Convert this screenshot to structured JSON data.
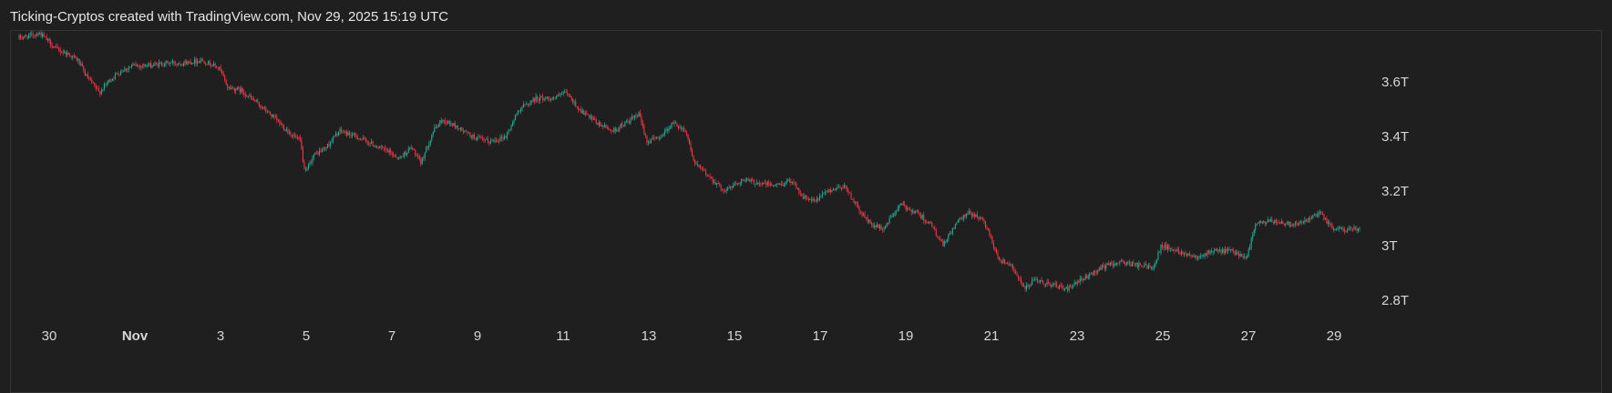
{
  "header": {
    "title": "Ticking-Cryptos created with TradingView.com, Nov 29, 2025 15:19 UTC"
  },
  "colors": {
    "background": "#1f1f1f",
    "pane_border": "#353535",
    "up": "#22ab94",
    "down": "#f23645",
    "text": "#d6d6d6"
  },
  "chart_data": {
    "type": "candlestick",
    "title": "",
    "unit": "T",
    "price_axis": {
      "position": "right",
      "range": [
        2.74,
        3.79
      ],
      "ticks": [
        {
          "value": 3.6,
          "label": "3.6T"
        },
        {
          "value": 3.4,
          "label": "3.4T"
        },
        {
          "value": 3.2,
          "label": "3.2T"
        },
        {
          "value": 3.0,
          "label": "3T"
        },
        {
          "value": 2.8,
          "label": "2.8T"
        }
      ]
    },
    "time_axis": {
      "range_days": [
        29.3,
        60.6
      ],
      "ticks": [
        {
          "day": 30,
          "label": "30",
          "bold": false
        },
        {
          "day": 32,
          "label": "Nov",
          "bold": true
        },
        {
          "day": 34,
          "label": "3",
          "bold": false
        },
        {
          "day": 36,
          "label": "5",
          "bold": false
        },
        {
          "day": 38,
          "label": "7",
          "bold": false
        },
        {
          "day": 40,
          "label": "9",
          "bold": false
        },
        {
          "day": 42,
          "label": "11",
          "bold": false
        },
        {
          "day": 44,
          "label": "13",
          "bold": false
        },
        {
          "day": 46,
          "label": "15",
          "bold": false
        },
        {
          "day": 48,
          "label": "17",
          "bold": false
        },
        {
          "day": 50,
          "label": "19",
          "bold": false
        },
        {
          "day": 52,
          "label": "21",
          "bold": false
        },
        {
          "day": 54,
          "label": "23",
          "bold": false
        },
        {
          "day": 56,
          "label": "25",
          "bold": false
        },
        {
          "day": 58,
          "label": "27",
          "bold": false
        },
        {
          "day": 60,
          "label": "29",
          "bold": false
        }
      ]
    },
    "price_path": [
      [
        29.3,
        3.76
      ],
      [
        29.6,
        3.77
      ],
      [
        29.8,
        3.78
      ],
      [
        30.0,
        3.75
      ],
      [
        30.2,
        3.72
      ],
      [
        30.5,
        3.7
      ],
      [
        30.7,
        3.68
      ],
      [
        30.9,
        3.62
      ],
      [
        31.2,
        3.56
      ],
      [
        31.4,
        3.6
      ],
      [
        31.7,
        3.64
      ],
      [
        32.0,
        3.66
      ],
      [
        32.4,
        3.66
      ],
      [
        32.8,
        3.67
      ],
      [
        33.2,
        3.67
      ],
      [
        33.6,
        3.68
      ],
      [
        34.0,
        3.65
      ],
      [
        34.2,
        3.58
      ],
      [
        34.5,
        3.57
      ],
      [
        34.9,
        3.52
      ],
      [
        35.2,
        3.48
      ],
      [
        35.6,
        3.42
      ],
      [
        35.9,
        3.38
      ],
      [
        36.0,
        3.26
      ],
      [
        36.2,
        3.33
      ],
      [
        36.5,
        3.36
      ],
      [
        36.8,
        3.42
      ],
      [
        37.2,
        3.4
      ],
      [
        37.6,
        3.37
      ],
      [
        38.0,
        3.34
      ],
      [
        38.2,
        3.32
      ],
      [
        38.5,
        3.36
      ],
      [
        38.7,
        3.3
      ],
      [
        39.0,
        3.42
      ],
      [
        39.2,
        3.46
      ],
      [
        39.5,
        3.44
      ],
      [
        39.9,
        3.4
      ],
      [
        40.3,
        3.38
      ],
      [
        40.7,
        3.4
      ],
      [
        41.0,
        3.5
      ],
      [
        41.4,
        3.54
      ],
      [
        41.8,
        3.54
      ],
      [
        42.1,
        3.56
      ],
      [
        42.4,
        3.5
      ],
      [
        42.8,
        3.45
      ],
      [
        43.2,
        3.42
      ],
      [
        43.6,
        3.46
      ],
      [
        43.8,
        3.48
      ],
      [
        44.0,
        3.38
      ],
      [
        44.3,
        3.4
      ],
      [
        44.6,
        3.45
      ],
      [
        44.9,
        3.42
      ],
      [
        45.1,
        3.3
      ],
      [
        45.4,
        3.26
      ],
      [
        45.8,
        3.2
      ],
      [
        46.2,
        3.24
      ],
      [
        46.6,
        3.23
      ],
      [
        47.0,
        3.22
      ],
      [
        47.4,
        3.24
      ],
      [
        47.6,
        3.18
      ],
      [
        47.9,
        3.16
      ],
      [
        48.2,
        3.2
      ],
      [
        48.6,
        3.22
      ],
      [
        48.9,
        3.14
      ],
      [
        49.2,
        3.08
      ],
      [
        49.5,
        3.06
      ],
      [
        49.9,
        3.15
      ],
      [
        50.3,
        3.12
      ],
      [
        50.6,
        3.08
      ],
      [
        50.9,
        3.0
      ],
      [
        51.2,
        3.08
      ],
      [
        51.5,
        3.12
      ],
      [
        51.8,
        3.1
      ],
      [
        52.0,
        3.04
      ],
      [
        52.2,
        2.95
      ],
      [
        52.5,
        2.93
      ],
      [
        52.8,
        2.84
      ],
      [
        53.0,
        2.87
      ],
      [
        53.4,
        2.86
      ],
      [
        53.8,
        2.84
      ],
      [
        54.2,
        2.88
      ],
      [
        54.6,
        2.92
      ],
      [
        55.0,
        2.94
      ],
      [
        55.4,
        2.93
      ],
      [
        55.8,
        2.92
      ],
      [
        56.0,
        3.0
      ],
      [
        56.4,
        2.98
      ],
      [
        56.8,
        2.96
      ],
      [
        57.2,
        2.98
      ],
      [
        57.6,
        2.98
      ],
      [
        58.0,
        2.96
      ],
      [
        58.2,
        3.08
      ],
      [
        58.6,
        3.09
      ],
      [
        59.0,
        3.08
      ],
      [
        59.4,
        3.09
      ],
      [
        59.7,
        3.12
      ],
      [
        60.0,
        3.06
      ],
      [
        60.3,
        3.06
      ],
      [
        60.5,
        3.06
      ]
    ]
  }
}
